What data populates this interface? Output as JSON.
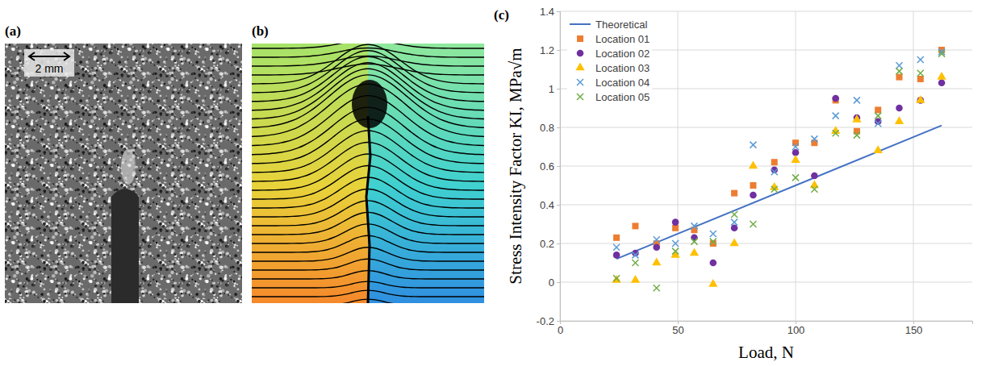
{
  "figure": {
    "panel_labels": [
      "(a)",
      "(b)",
      "(c)"
    ],
    "scale_bar": "2 mm"
  },
  "chart_data": {
    "type": "scatter",
    "xlabel": "Load, N",
    "ylabel": "Stress Intensity Factor KI, MPa√m",
    "x": [
      24,
      32,
      41,
      49,
      57,
      65,
      74,
      82,
      91,
      100,
      108,
      117,
      126,
      135,
      144,
      153,
      162
    ],
    "xlim": [
      0,
      175
    ],
    "xticks": [
      0,
      50,
      100,
      150
    ],
    "ylim": [
      -0.2,
      1.4
    ],
    "yticks": [
      -0.2,
      0,
      0.2,
      0.4,
      0.6,
      0.8,
      1,
      1.2,
      1.4
    ],
    "grid": true,
    "legend": "top-left",
    "series": [
      {
        "name": "Theoretical",
        "type": "line",
        "line_style": "solid",
        "color": "#4472c4",
        "x": [
          24,
          162
        ],
        "values": [
          0.12,
          0.81
        ]
      },
      {
        "name": "Location 01",
        "marker": "square",
        "color": "#ed7d31",
        "values": [
          0.23,
          0.29,
          0.2,
          0.28,
          0.27,
          0.2,
          0.46,
          0.5,
          0.62,
          0.72,
          0.72,
          0.94,
          0.78,
          0.89,
          1.06,
          1.05,
          1.2
        ]
      },
      {
        "name": "Location 02",
        "marker": "circle",
        "color": "#7030a0",
        "values": [
          0.14,
          0.15,
          0.18,
          0.31,
          0.23,
          0.1,
          0.28,
          0.45,
          0.58,
          0.67,
          0.55,
          0.95,
          0.85,
          0.83,
          0.9,
          0.94,
          1.03
        ]
      },
      {
        "name": "Location 03",
        "marker": "triangle",
        "color": "#ffc000",
        "values": [
          0.01,
          0.01,
          0.1,
          0.14,
          0.15,
          -0.01,
          0.2,
          0.6,
          0.49,
          0.63,
          0.5,
          0.78,
          0.84,
          0.68,
          0.83,
          0.94,
          1.06
        ]
      },
      {
        "name": "Location 04",
        "marker": "x",
        "color": "#5b9bd5",
        "values": [
          0.18,
          0.14,
          0.22,
          0.2,
          0.29,
          0.25,
          0.31,
          0.71,
          0.57,
          0.7,
          0.74,
          0.86,
          0.94,
          0.82,
          1.12,
          1.15,
          1.19
        ]
      },
      {
        "name": "Location 05",
        "marker": "x",
        "color": "#70ad47",
        "values": [
          0.02,
          0.1,
          -0.03,
          0.16,
          0.21,
          0.21,
          0.35,
          0.3,
          0.48,
          0.54,
          0.48,
          0.77,
          0.76,
          0.86,
          1.09,
          1.08,
          1.18
        ]
      }
    ]
  }
}
